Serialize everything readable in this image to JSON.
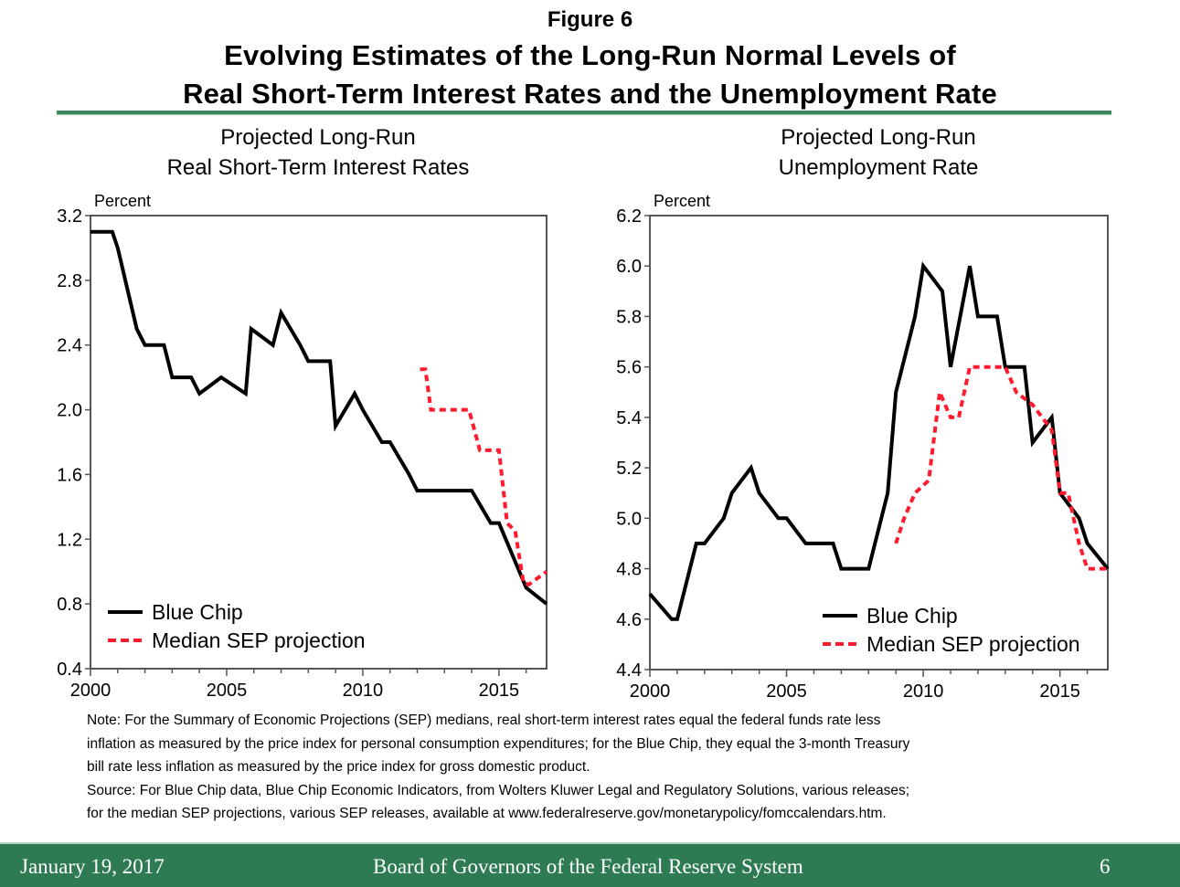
{
  "figure": {
    "label": "Figure 6",
    "title_line1": "Evolving Estimates of the Long-Run Normal Levels of",
    "title_line2": "Real Short-Term Interest Rates and the Unemployment Rate"
  },
  "notes": [
    "Note: For the Summary of Economic Projections (SEP) medians, real short-term interest rates equal the federal funds rate less",
    "inflation as measured by the price index for personal consumption expenditures; for the Blue Chip, they equal  the 3-month Treasury",
    "bill rate less inflation as measured by the price index for gross domestic product.",
    "Source:  For Blue Chip data, Blue Chip Economic Indicators, from Wolters Kluwer Legal and Regulatory Solutions, various releases;",
    "for the median SEP projections, various SEP releases, available at www.federalreserve.gov/monetarypolicy/fomccalendars.htm."
  ],
  "footer": {
    "date": "January 19, 2017",
    "organization": "Board of Governors of the Federal Reserve System",
    "page": "6"
  },
  "colors": {
    "blue_chip": "#000000",
    "sep": "#ff1a2e",
    "accent_green": "#2e7a52"
  },
  "chart_data": [
    {
      "type": "line",
      "title_line1": "Projected Long-Run",
      "title_line2": "Real Short-Term Interest Rates",
      "xlabel": "",
      "ylabel": "Percent",
      "xlim": [
        2000,
        2016.75
      ],
      "ylim": [
        0.4,
        3.2
      ],
      "xticks": [
        2000,
        2005,
        2010,
        2015
      ],
      "xtick_labels": [
        "2000",
        "2005",
        "2010",
        "2015"
      ],
      "yticks": [
        0.4,
        0.8,
        1.2,
        1.6,
        2.0,
        2.4,
        2.8,
        3.2
      ],
      "ytick_labels": [
        "0.4",
        "0.8",
        "1.2",
        "1.6",
        "2.0",
        "2.4",
        "2.8",
        "3.2"
      ],
      "grid": false,
      "legend_position": "bottom-left",
      "series": [
        {
          "name": "Blue Chip",
          "style": "solid",
          "x": [
            2000,
            2000.8,
            2001,
            2001.7,
            2002,
            2002.7,
            2003,
            2003.7,
            2004,
            2004.8,
            2005.7,
            2005.9,
            2006.7,
            2007,
            2007.7,
            2008,
            2008.8,
            2009,
            2009.7,
            2010,
            2010.7,
            2011,
            2011.7,
            2012,
            2014,
            2014.7,
            2015,
            2016,
            2016.75
          ],
          "y": [
            3.1,
            3.1,
            3.0,
            2.5,
            2.4,
            2.4,
            2.2,
            2.2,
            2.1,
            2.2,
            2.1,
            2.5,
            2.4,
            2.6,
            2.4,
            2.3,
            2.3,
            1.9,
            2.1,
            2.0,
            1.8,
            1.8,
            1.6,
            1.5,
            1.5,
            1.3,
            1.3,
            0.9,
            0.8
          ]
        },
        {
          "name": "Median SEP projection",
          "style": "dashed",
          "x": [
            2012.1,
            2012.3,
            2012.5,
            2013.9,
            2014.3,
            2015.0,
            2015.3,
            2015.6,
            2015.9,
            2016.1,
            2016.75
          ],
          "y": [
            2.25,
            2.25,
            2.0,
            2.0,
            1.75,
            1.75,
            1.3,
            1.25,
            0.93,
            0.92,
            1.0
          ]
        }
      ]
    },
    {
      "type": "line",
      "title_line1": "Projected Long-Run",
      "title_line2": "Unemployment Rate",
      "xlabel": "",
      "ylabel": "Percent",
      "xlim": [
        2000,
        2016.75
      ],
      "ylim": [
        4.4,
        6.2
      ],
      "xticks": [
        2000,
        2005,
        2010,
        2015
      ],
      "xtick_labels": [
        "2000",
        "2005",
        "2010",
        "2015"
      ],
      "yticks": [
        4.4,
        4.6,
        4.8,
        5.0,
        5.2,
        5.4,
        5.6,
        5.8,
        6.0,
        6.2
      ],
      "ytick_labels": [
        "4.4",
        "4.6",
        "4.8",
        "5.0",
        "5.2",
        "5.4",
        "5.6",
        "5.8",
        "6.0",
        "6.2"
      ],
      "grid": false,
      "legend_position": "bottom-right",
      "series": [
        {
          "name": "Blue Chip",
          "style": "solid",
          "x": [
            2000,
            2000.8,
            2001,
            2001.7,
            2002,
            2002.7,
            2003,
            2003.7,
            2004,
            2004.7,
            2005,
            2005.7,
            2006.7,
            2007,
            2008,
            2008.7,
            2009,
            2009.7,
            2010,
            2010.7,
            2011,
            2011.7,
            2012,
            2012.7,
            2013,
            2013.7,
            2014,
            2014.7,
            2015,
            2015.7,
            2016,
            2016.75
          ],
          "y": [
            4.7,
            4.6,
            4.6,
            4.9,
            4.9,
            5.0,
            5.1,
            5.2,
            5.1,
            5.0,
            5.0,
            4.9,
            4.9,
            4.8,
            4.8,
            5.1,
            5.5,
            5.8,
            6.0,
            5.9,
            5.6,
            6.0,
            5.8,
            5.8,
            5.6,
            5.6,
            5.3,
            5.4,
            5.1,
            5.0,
            4.9,
            4.8
          ]
        },
        {
          "name": "Median SEP projection",
          "style": "dashed",
          "x": [
            2009,
            2009.3,
            2009.7,
            2010.2,
            2010.6,
            2011,
            2011.3,
            2011.7,
            2013,
            2013.4,
            2014,
            2014.7,
            2015,
            2015.3,
            2015.7,
            2016,
            2016.75
          ],
          "y": [
            4.9,
            5.0,
            5.1,
            5.15,
            5.5,
            5.4,
            5.4,
            5.6,
            5.6,
            5.5,
            5.45,
            5.35,
            5.1,
            5.1,
            4.9,
            4.8,
            4.8
          ]
        }
      ]
    }
  ]
}
